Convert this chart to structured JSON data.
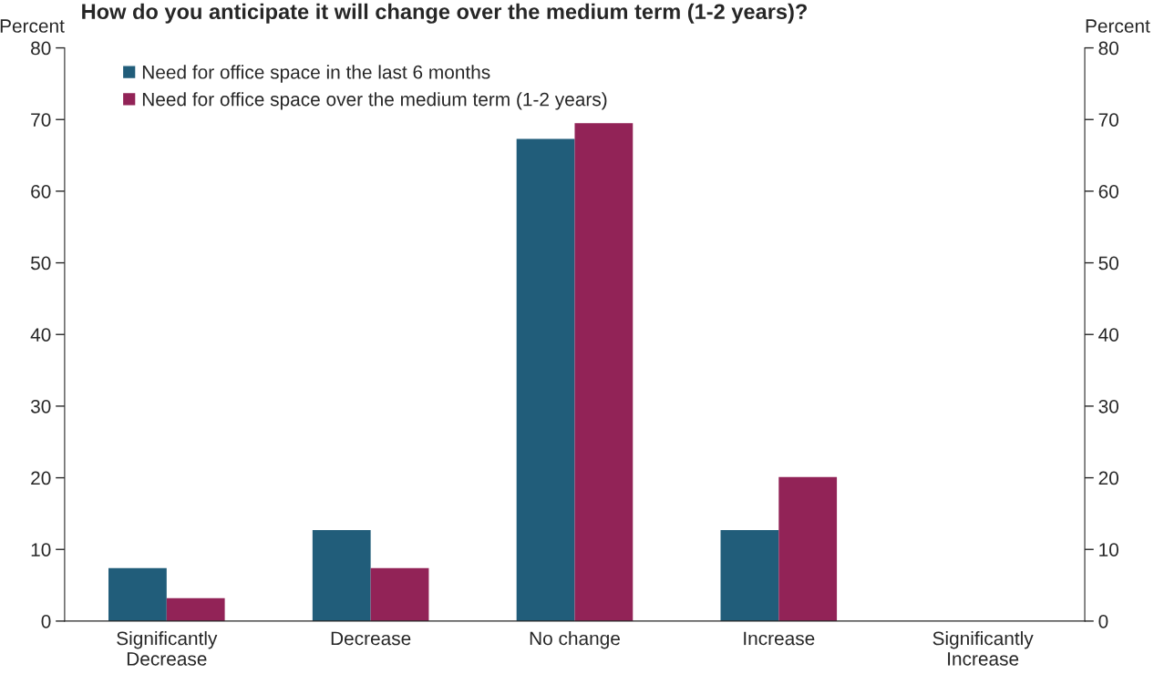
{
  "chart_data": {
    "type": "bar",
    "title": "How do you anticipate it will change over the medium term (1-2 years)?",
    "ylabel": "Percent",
    "y2label": "Percent",
    "categories": [
      "Significantly\nDecrease",
      "Decrease",
      "No change",
      "Increase",
      "Significantly\nIncrease"
    ],
    "series": [
      {
        "name": "Need for office space in the last 6 months",
        "color": "#215d7a",
        "values": [
          7.4,
          12.7,
          67.3,
          12.7,
          0
        ]
      },
      {
        "name": "Need for office space over the medium term (1-2 years)",
        "color": "#922357",
        "values": [
          3.2,
          7.4,
          69.5,
          20.1,
          0
        ]
      }
    ],
    "ylim": [
      0,
      80
    ],
    "yticks": [
      0,
      10,
      20,
      30,
      40,
      50,
      60,
      70,
      80
    ],
    "y2lim": [
      0,
      80
    ],
    "y2ticks": [
      0,
      10,
      20,
      30,
      40,
      50,
      60,
      70,
      80
    ],
    "grid": false,
    "legend": "top left"
  }
}
